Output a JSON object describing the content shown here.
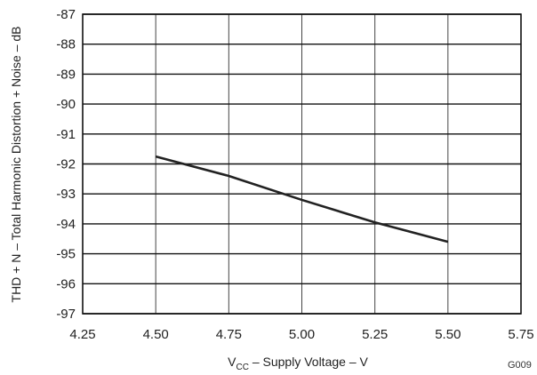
{
  "chart_data": {
    "type": "line",
    "title": "",
    "xlabel_main": "V",
    "xlabel_sub": "CC",
    "xlabel_rest": " – Supply Voltage – V",
    "ylabel": "THD + N – Total Harmonic Distortion + Noise – dB",
    "xlim": [
      4.25,
      5.75
    ],
    "ylim": [
      -97,
      -87
    ],
    "x_ticks": [
      "4.25",
      "4.50",
      "4.75",
      "5.00",
      "5.25",
      "5.50",
      "5.75"
    ],
    "y_ticks": [
      "-87",
      "-88",
      "-89",
      "-90",
      "-91",
      "-92",
      "-93",
      "-94",
      "-95",
      "-96",
      "-97"
    ],
    "grid": true,
    "series": [
      {
        "x": [
          4.5,
          4.75,
          5.0,
          5.25,
          5.5
        ],
        "y": [
          -91.75,
          -92.4,
          -93.2,
          -93.95,
          -94.6
        ]
      }
    ],
    "figure_code": "G009"
  }
}
